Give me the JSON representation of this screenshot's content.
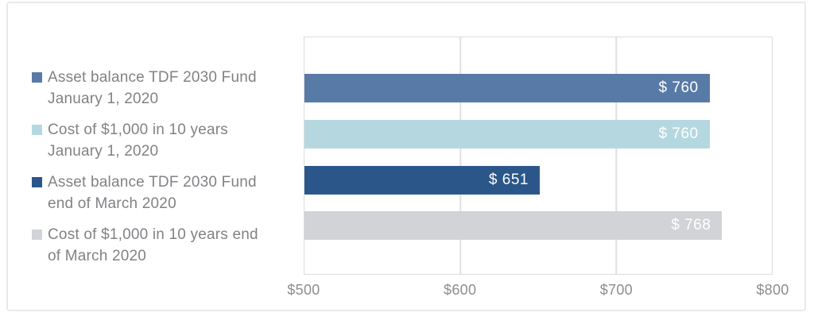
{
  "chart_data": {
    "type": "bar",
    "orientation": "horizontal",
    "title": "",
    "categories": [
      "Asset balance TDF 2030 Fund January 1, 2020",
      "Cost of $1,000 in 10 years January 1, 2020",
      "Asset balance TDF 2030 Fund end of March 2020",
      "Cost of $1,000 in 10 years end of March 2020"
    ],
    "values": [
      760,
      760,
      651,
      768
    ],
    "value_labels": [
      "$ 760",
      "$ 760",
      "$ 651",
      "$ 768"
    ],
    "series_colors": [
      "#587aa6",
      "#b5d8e0",
      "#2b568a",
      "#d1d3d6"
    ],
    "value_label_color": "#ffffff",
    "xlim": [
      500,
      800
    ],
    "x_ticks": [
      500,
      600,
      700,
      800
    ],
    "x_tick_labels": [
      "$500",
      "$600",
      "$700",
      "$800"
    ],
    "grid": "vertical gridlines at each x tick, light gray",
    "legend_position": "left of plot, one swatch per bar, two-line labels"
  },
  "legend": {
    "items": [
      {
        "line1": "Asset balance TDF 2030 Fund",
        "line2": "January 1, 2020",
        "color": "#587aa6"
      },
      {
        "line1": "Cost of $1,000 in 10 years",
        "line2": "January 1, 2020",
        "color": "#b5d8e0"
      },
      {
        "line1": "Asset balance TDF 2030 Fund",
        "line2": "end of March 2020",
        "color": "#2b568a"
      },
      {
        "line1": "Cost of $1,000 in 10 years end",
        "line2": "of March 2020",
        "color": "#d1d3d6"
      }
    ]
  },
  "colors": {
    "background": "#ffffff",
    "card_border": "#e9e9e9",
    "plot_border": "#dcdcdc",
    "gridline": "#e0e0e0",
    "legend_text": "#808285",
    "tick_text": "#8b8d90"
  }
}
